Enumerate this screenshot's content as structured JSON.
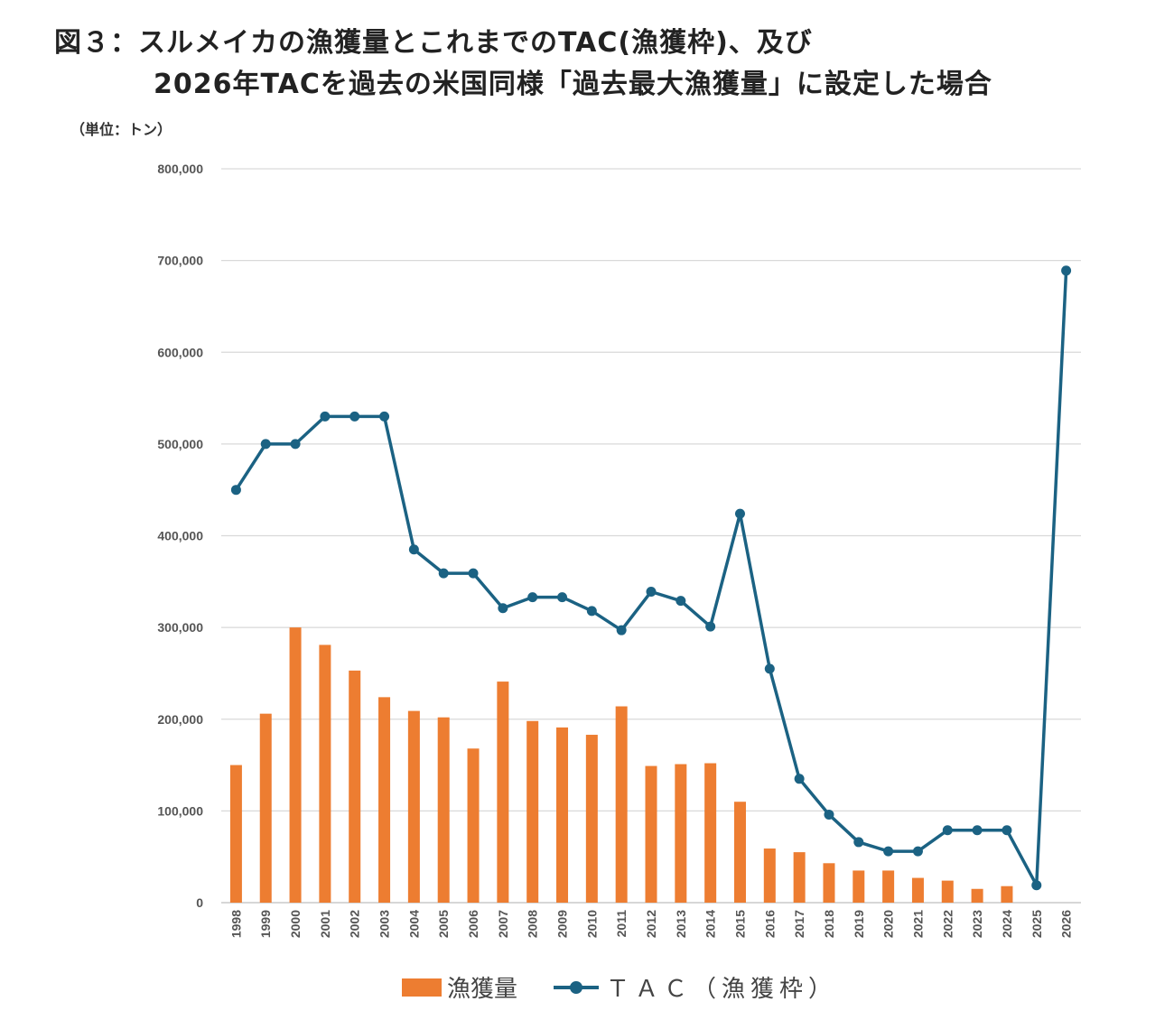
{
  "title_line1": "図３：スルメイカの漁獲量とこれまでのTAC(漁獲枠)、及び",
  "title_line2": "2026年TACを過去の米国同様「過去最大漁獲量」に設定した場合",
  "unit_label": "（単位：トン）",
  "colors": {
    "catch": "#ED7D31",
    "tac": "#1B6283",
    "grid": "#D9D9D9"
  },
  "chart_data": {
    "type": "bar+line",
    "categories": [
      "1998",
      "1999",
      "2000",
      "2001",
      "2002",
      "2003",
      "2004",
      "2005",
      "2006",
      "2007",
      "2008",
      "2009",
      "2010",
      "2011",
      "2012",
      "2013",
      "2014",
      "2015",
      "2016",
      "2017",
      "2018",
      "2019",
      "2020",
      "2021",
      "2022",
      "2023",
      "2024",
      "2025",
      "2026"
    ],
    "series": [
      {
        "name": "漁獲量",
        "type": "bar",
        "values": [
          150000,
          206000,
          300000,
          281000,
          253000,
          224000,
          209000,
          202000,
          168000,
          241000,
          198000,
          191000,
          183000,
          214000,
          149000,
          151000,
          152000,
          110000,
          59000,
          55000,
          43000,
          35000,
          35000,
          27000,
          24000,
          15000,
          18000,
          null,
          null
        ]
      },
      {
        "name": "ＴＡＣ（漁獲枠）",
        "type": "line",
        "values": [
          450000,
          500000,
          500000,
          530000,
          530000,
          530000,
          385000,
          359000,
          359000,
          321000,
          333000,
          333000,
          318000,
          297000,
          339000,
          329000,
          301000,
          424000,
          255000,
          135000,
          96000,
          66000,
          56000,
          56000,
          79000,
          79000,
          79000,
          19000,
          689000
        ]
      }
    ],
    "ylim": [
      0,
      800000
    ],
    "yticks": [
      "0",
      "100,000",
      "200,000",
      "300,000",
      "400,000",
      "500,000",
      "600,000",
      "700,000",
      "800,000"
    ],
    "grid": true,
    "legend_position": "bottom"
  }
}
